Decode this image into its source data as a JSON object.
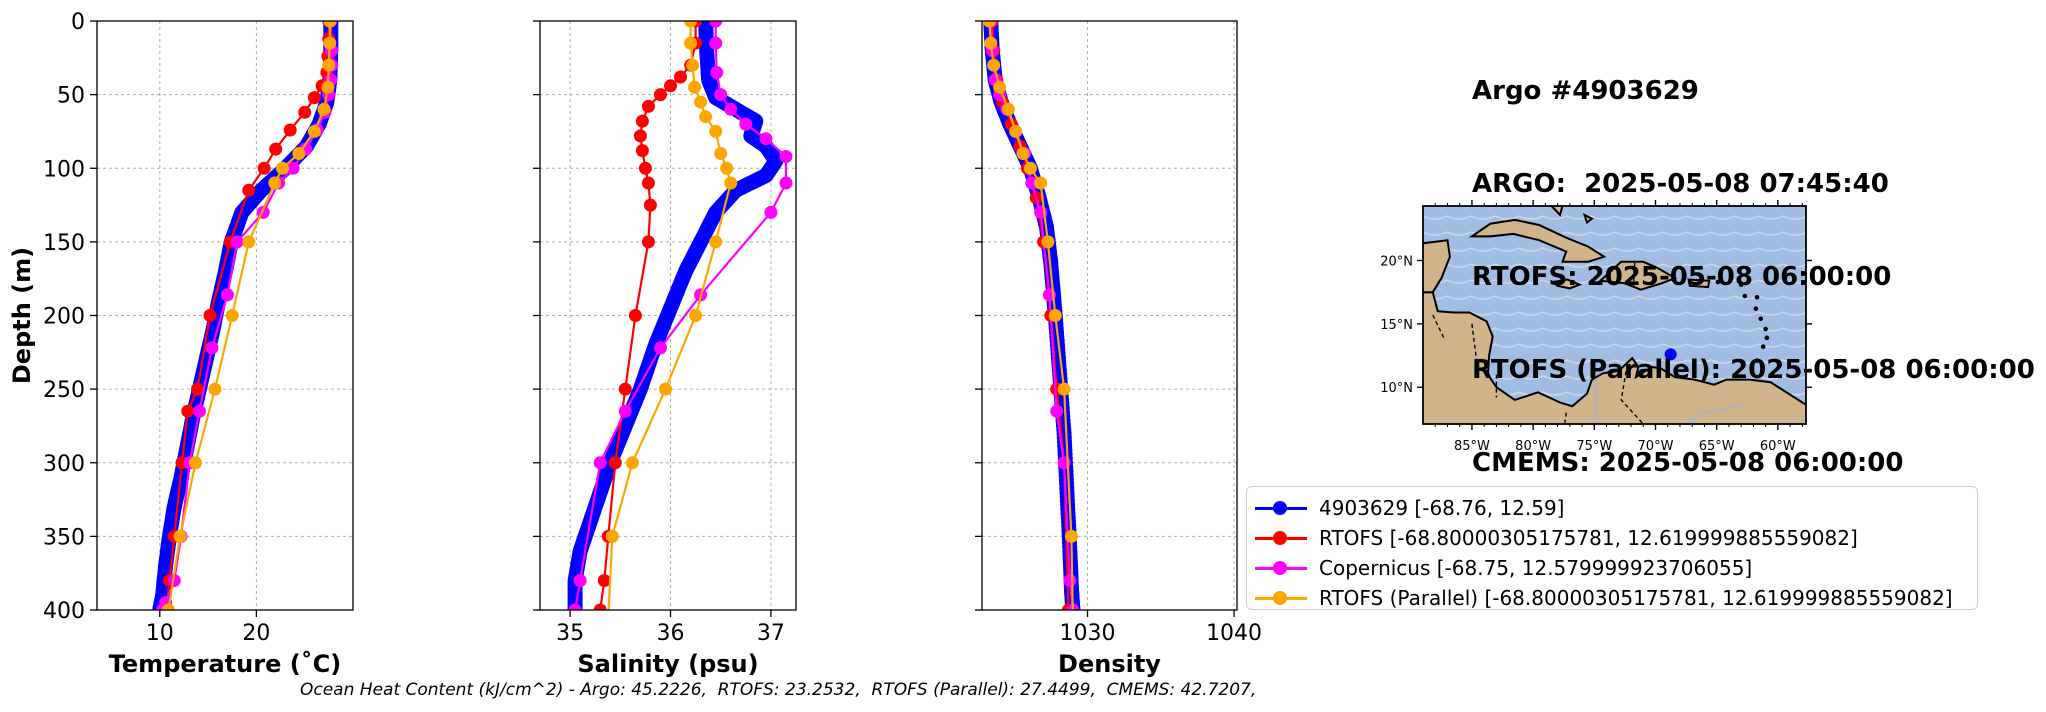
{
  "chart_data": [
    {
      "type": "line",
      "xlabel": "Temperature (˚C)",
      "ylabel": "Depth (m)",
      "xlim": [
        3.5,
        30
      ],
      "ylim": [
        400,
        0
      ],
      "xticks": [
        10,
        20
      ],
      "yticks": [
        0,
        50,
        100,
        150,
        200,
        250,
        300,
        350,
        400
      ],
      "grid": true,
      "series": [
        {
          "name": "4903629 [-68.76, 12.59]",
          "color": "#0000ff",
          "dense": true,
          "x": [
            27.7,
            27.7,
            27.6,
            27.3,
            26.5,
            25.2,
            23.0,
            20.5,
            18.5,
            17.4,
            16.8,
            16.1,
            15.5,
            14.8,
            14.1,
            13.4,
            12.8,
            12.2,
            11.5,
            11.0,
            10.6,
            10.3,
            10.0
          ],
          "y": [
            0,
            20,
            40,
            55,
            70,
            85,
            100,
            115,
            130,
            150,
            170,
            190,
            210,
            230,
            250,
            270,
            290,
            310,
            330,
            350,
            370,
            390,
            400
          ]
        },
        {
          "name": "RTOFS [-68.80000305175781, 12.619999885559082]",
          "color": "#ff0000",
          "x": [
            27.5,
            27.5,
            27.4,
            27.3,
            26.8,
            26.0,
            25.0,
            23.5,
            22.0,
            20.8,
            19.2,
            17.3,
            15.2,
            13.9,
            12.9,
            12.3,
            11.5,
            11.0,
            10.7
          ],
          "y": [
            0,
            12,
            24,
            35,
            44,
            52,
            62,
            74,
            87,
            100,
            115,
            150,
            200,
            250,
            265,
            300,
            350,
            380,
            400
          ]
        },
        {
          "name": "Copernicus [-68.75, 12.579999923706055]",
          "color": "#ff00ff",
          "x": [
            27.7,
            27.8,
            27.8,
            27.7,
            27.5,
            27.1,
            26.3,
            25.1,
            23.8,
            22.3,
            20.7,
            18.0,
            17.0,
            15.4,
            14.1,
            13.1,
            12.2,
            11.5,
            10.6,
            10.3
          ],
          "y": [
            0,
            20,
            30,
            40,
            50,
            62,
            74,
            87,
            100,
            110,
            130,
            150,
            186,
            222,
            265,
            300,
            350,
            380,
            395,
            400
          ]
        },
        {
          "name": "RTOFS (Parallel) [-68.80000305175781, 12.619999885559082]",
          "color": "#ffa500",
          "x": [
            27.6,
            27.6,
            27.5,
            27.4,
            27.0,
            26.0,
            24.4,
            22.7,
            21.9,
            19.2,
            17.5,
            15.7,
            13.7,
            12.1,
            10.9,
            10.7
          ],
          "y": [
            0,
            15,
            30,
            45,
            60,
            75,
            90,
            100,
            110,
            150,
            200,
            250,
            300,
            350,
            400,
            405
          ]
        }
      ]
    },
    {
      "type": "line",
      "xlabel": "Salinity (psu)",
      "ylabel": "",
      "xlim": [
        34.7,
        37.25
      ],
      "ylim": [
        400,
        0
      ],
      "xticks": [
        35,
        36,
        37
      ],
      "yticks": [
        0,
        50,
        100,
        150,
        200,
        250,
        300,
        350,
        400
      ],
      "grid": true,
      "series": [
        {
          "name": "4903629 [-68.76, 12.59]",
          "color": "#0000ff",
          "dense": true,
          "x": [
            36.35,
            36.36,
            36.38,
            36.45,
            36.65,
            36.85,
            36.8,
            36.95,
            37.05,
            36.95,
            36.65,
            36.45,
            36.3,
            36.15,
            36.0,
            35.85,
            35.7,
            35.55,
            35.4,
            35.3,
            35.2,
            35.1,
            35.05,
            35.05
          ],
          "y": [
            0,
            20,
            40,
            52,
            60,
            68,
            78,
            85,
            95,
            105,
            115,
            130,
            150,
            170,
            195,
            220,
            250,
            275,
            300,
            320,
            340,
            360,
            380,
            400
          ]
        },
        {
          "name": "RTOFS [-68.80000305175781, 12.619999885559082]",
          "color": "#ff0000",
          "x": [
            36.25,
            36.25,
            36.2,
            36.1,
            36.0,
            35.9,
            35.78,
            35.72,
            35.7,
            35.72,
            35.75,
            35.78,
            35.8,
            35.78,
            35.65,
            35.55,
            35.45,
            35.38,
            35.34,
            35.3
          ],
          "y": [
            0,
            15,
            30,
            38,
            44,
            50,
            58,
            68,
            78,
            88,
            100,
            110,
            125,
            150,
            200,
            250,
            300,
            350,
            380,
            400
          ]
        },
        {
          "name": "Copernicus [-68.75, 12.579999923706055]",
          "color": "#ff00ff",
          "x": [
            36.45,
            36.45,
            36.46,
            36.5,
            36.6,
            36.75,
            36.95,
            37.15,
            37.15,
            37.0,
            36.3,
            35.9,
            35.55,
            35.3,
            35.1,
            35.05
          ],
          "y": [
            0,
            15,
            35,
            50,
            60,
            70,
            80,
            92,
            110,
            130,
            186,
            222,
            265,
            300,
            380,
            400
          ]
        },
        {
          "name": "RTOFS (Parallel) [-68.80000305175781, 12.619999885559082]",
          "color": "#ffa500",
          "x": [
            36.2,
            36.2,
            36.22,
            36.24,
            36.3,
            36.35,
            36.45,
            36.5,
            36.56,
            36.6,
            36.45,
            36.25,
            35.95,
            35.62,
            35.42,
            35.38
          ],
          "y": [
            0,
            15,
            30,
            45,
            55,
            65,
            75,
            90,
            100,
            110,
            150,
            200,
            250,
            300,
            350,
            405
          ]
        }
      ]
    },
    {
      "type": "line",
      "xlabel": "Density",
      "ylabel": "",
      "xlim": [
        1022.8,
        1040.2
      ],
      "ylim": [
        400,
        0
      ],
      "xticks": [
        1030,
        1040
      ],
      "yticks": [
        0,
        50,
        100,
        150,
        200,
        250,
        300,
        350,
        400
      ],
      "grid": true,
      "series": [
        {
          "name": "4903629 [-68.76, 12.59]",
          "color": "#0000ff",
          "dense": true,
          "x": [
            1023.4,
            1023.5,
            1023.7,
            1024.1,
            1024.7,
            1025.4,
            1026.1,
            1026.7,
            1027.2,
            1027.5,
            1027.8,
            1028.1,
            1028.4,
            1028.6,
            1028.8,
            1028.9,
            1029.0
          ],
          "y": [
            0,
            20,
            40,
            55,
            70,
            85,
            100,
            120,
            140,
            165,
            200,
            240,
            280,
            320,
            360,
            385,
            400
          ]
        },
        {
          "name": "RTOFS [-68.80000305175781, 12.619999885559082]",
          "color": "#ff0000",
          "x": [
            1023.5,
            1023.6,
            1023.8,
            1024.2,
            1024.8,
            1025.4,
            1025.9,
            1026.5,
            1027.0,
            1027.5,
            1027.9,
            1028.4,
            1028.7
          ],
          "y": [
            0,
            20,
            40,
            55,
            70,
            85,
            100,
            120,
            150,
            200,
            250,
            300,
            400
          ]
        },
        {
          "name": "Copernicus [-68.75, 12.579999923706055]",
          "color": "#ff00ff",
          "x": [
            1023.4,
            1023.5,
            1023.7,
            1024.0,
            1024.5,
            1025.1,
            1025.7,
            1026.2,
            1026.8,
            1027.4,
            1027.9,
            1028.4,
            1028.8,
            1029.0
          ],
          "y": [
            0,
            20,
            40,
            50,
            60,
            75,
            90,
            110,
            130,
            186,
            265,
            300,
            380,
            400
          ]
        },
        {
          "name": "RTOFS (Parallel) [-68.80000305175781, 12.619999885559082]",
          "color": "#ffa500",
          "x": [
            1023.3,
            1023.4,
            1023.6,
            1024.0,
            1024.6,
            1025.1,
            1025.6,
            1026.1,
            1026.8,
            1027.3,
            1027.8,
            1028.4,
            1028.9,
            1029.0
          ],
          "y": [
            0,
            15,
            30,
            45,
            60,
            75,
            90,
            100,
            110,
            150,
            200,
            250,
            350,
            405
          ]
        }
      ]
    }
  ],
  "title_lines": [
    "Argo #4903629",
    "ARGO:  2025-05-08 07:45:40",
    "RTOFS: 2025-05-08 06:00:00",
    "RTOFS (Parallel): 2025-05-08 06:00:00",
    "CMEMS: 2025-05-08 06:00:00"
  ],
  "inset_map": {
    "lon_ticks": [
      "85°W",
      "80°W",
      "75°W",
      "70°W",
      "65°W",
      "60°W"
    ],
    "lat_ticks": [
      "20°N",
      "15°N",
      "10°N"
    ],
    "float_location": {
      "lon": -68.76,
      "lat": 12.59
    },
    "ocean_color": "#a2bde3",
    "land_color": "#d2b48c"
  },
  "legend": [
    {
      "label": "4903629 [-68.76, 12.59]",
      "color": "#0000ff"
    },
    {
      "label": "RTOFS [-68.80000305175781, 12.619999885559082]",
      "color": "#ff0000"
    },
    {
      "label": "Copernicus [-68.75, 12.579999923706055]",
      "color": "#ff00ff"
    },
    {
      "label": "RTOFS (Parallel) [-68.80000305175781, 12.619999885559082]",
      "color": "#ffa500"
    }
  ],
  "footer": "Ocean Heat Content (kJ/cm^2) - Argo: 45.2226,  RTOFS: 23.2532,  RTOFS (Parallel): 27.4499,  CMEMS: 42.7207,"
}
